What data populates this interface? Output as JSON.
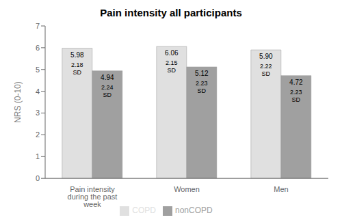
{
  "chart_data": {
    "type": "bar",
    "title": "Pain intensity all participants",
    "y_label": "NRS (0-10)",
    "categories": [
      "Pain intensity during the past week",
      "Women",
      "Men"
    ],
    "series": [
      {
        "name": "COPD",
        "color": "#e0e0e0",
        "values": [
          5.98,
          6.06,
          5.9
        ],
        "value_labels": [
          "5.98",
          "6.06",
          "5.90"
        ],
        "sd": [
          2.18,
          2.15,
          2.22
        ]
      },
      {
        "name": "nonCOPD",
        "color": "#a0a0a0",
        "values": [
          4.94,
          5.12,
          4.72
        ],
        "value_labels": [
          "4.94",
          "5.12",
          "4.72"
        ],
        "sd": [
          2.24,
          2.23,
          2.23
        ]
      }
    ],
    "sd_label": "SD",
    "ylim": [
      0,
      7
    ],
    "yticks": [
      0,
      1,
      2,
      3,
      4,
      5,
      6,
      7
    ],
    "grid": false,
    "legend": "bottom",
    "data_labels": true
  }
}
